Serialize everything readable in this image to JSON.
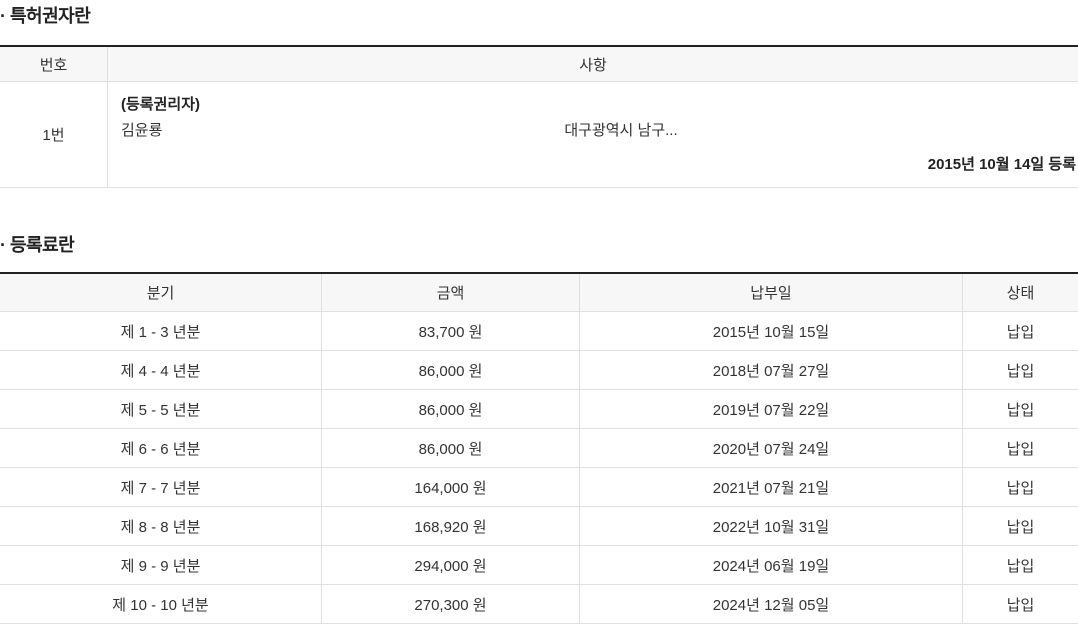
{
  "patent_holder": {
    "title": "· 특허권자란",
    "columns": {
      "number": "번호",
      "detail": "사항"
    },
    "entry": {
      "number": "1번",
      "holder_type": "(등록권리자)",
      "holder_name": "김윤룡",
      "holder_address": "대구광역시 남구...",
      "registration_note": "2015년 10월 14일 등록"
    }
  },
  "registration_fee": {
    "title": "· 등록료란",
    "columns": {
      "period": "분기",
      "amount": "금액",
      "payment_date": "납부일",
      "status": "상태"
    },
    "rows": [
      {
        "period": "제 1 - 3 년분",
        "amount": "83,700 원",
        "payment_date": "2015년 10월 15일",
        "status": "납입"
      },
      {
        "period": "제 4 - 4 년분",
        "amount": "86,000 원",
        "payment_date": "2018년 07월 27일",
        "status": "납입"
      },
      {
        "period": "제 5 - 5 년분",
        "amount": "86,000 원",
        "payment_date": "2019년 07월 22일",
        "status": "납입"
      },
      {
        "period": "제 6 - 6 년분",
        "amount": "86,000 원",
        "payment_date": "2020년 07월 24일",
        "status": "납입"
      },
      {
        "period": "제 7 - 7 년분",
        "amount": "164,000 원",
        "payment_date": "2021년 07월 21일",
        "status": "납입"
      },
      {
        "period": "제 8 - 8 년분",
        "amount": "168,920 원",
        "payment_date": "2022년 10월 31일",
        "status": "납입"
      },
      {
        "period": "제 9 - 9 년분",
        "amount": "294,000 원",
        "payment_date": "2024년 06월 19일",
        "status": "납입"
      },
      {
        "period": "제 10 - 10 년분",
        "amount": "270,300 원",
        "payment_date": "2024년 12월 05일",
        "status": "납입"
      }
    ]
  },
  "colors": {
    "table_top_border": "#222222",
    "cell_border": "#e0e0e0",
    "header_bg": "#f7f7f7",
    "text": "#333333"
  }
}
